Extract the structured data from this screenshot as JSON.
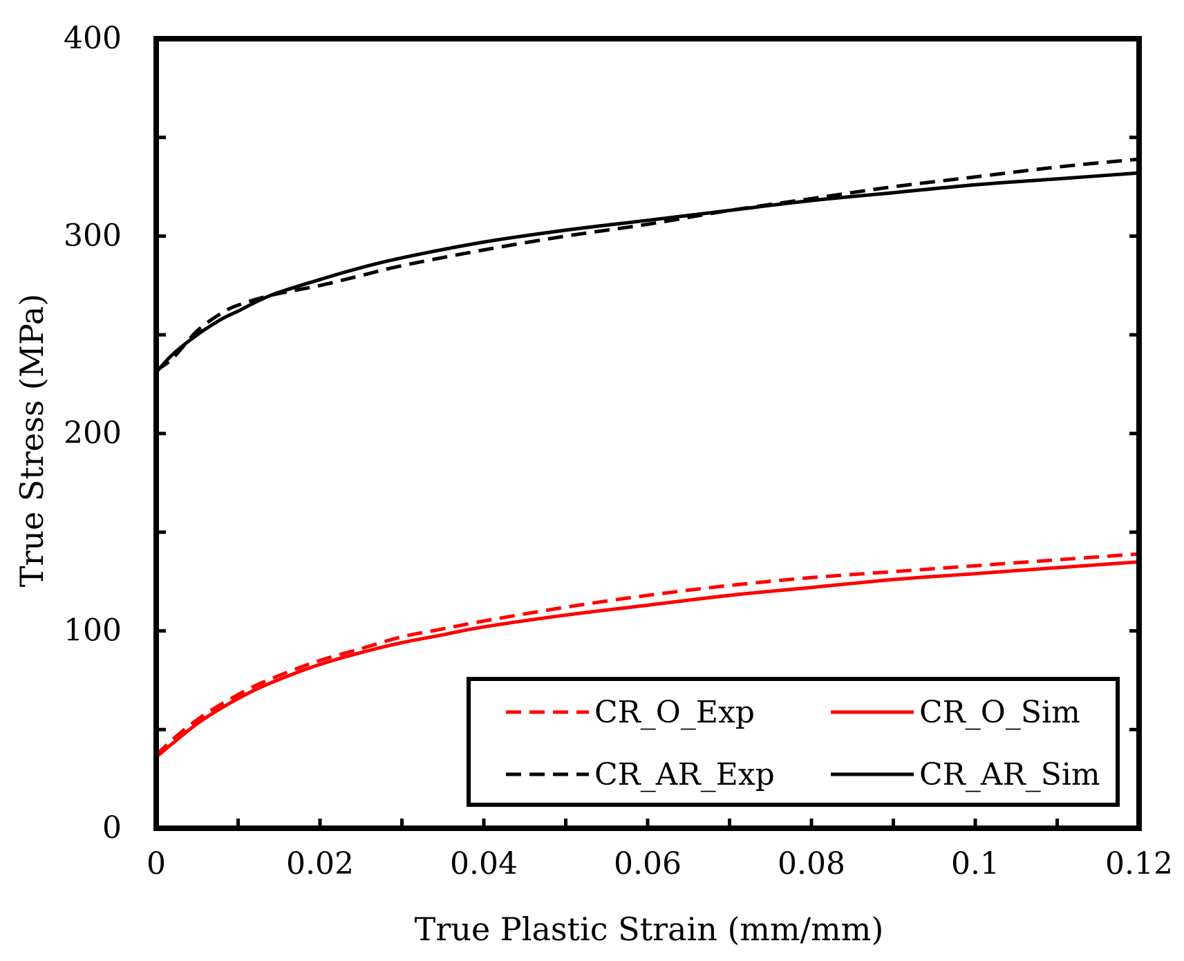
{
  "chart_data": {
    "type": "line",
    "title": "",
    "xlabel": "True Plastic Strain (mm/mm)",
    "ylabel": "True Stress (MPa)",
    "xlim": [
      0,
      0.12
    ],
    "ylim": [
      0,
      400
    ],
    "xticks": [
      0,
      0.02,
      0.04,
      0.06,
      0.08,
      0.1,
      0.12
    ],
    "xtick_labels": [
      "0",
      "0.02",
      "0.04",
      "0.06",
      "0.08",
      "0.1",
      "0.12"
    ],
    "yticks": [
      0,
      100,
      200,
      300,
      400
    ],
    "ytick_labels": [
      "0",
      "100",
      "200",
      "300",
      "400"
    ],
    "x_minor_step": 0.01,
    "y_minor_step": 50,
    "grid": false,
    "legend": {
      "placement": "bottom-right",
      "columns": 2
    },
    "colors": {
      "red": "#ff0000",
      "black": "#000000"
    },
    "series": [
      {
        "name": "CR_O_Exp",
        "color": "#ff0000",
        "dash": "dashed",
        "x": [
          0,
          0.002,
          0.005,
          0.008,
          0.012,
          0.016,
          0.02,
          0.025,
          0.03,
          0.035,
          0.04,
          0.05,
          0.06,
          0.07,
          0.08,
          0.09,
          0.1,
          0.11,
          0.12
        ],
        "y": [
          37,
          45,
          55,
          63,
          72,
          79,
          85,
          91,
          97,
          101,
          105,
          112,
          118,
          123,
          127,
          130,
          133,
          136,
          139
        ]
      },
      {
        "name": "CR_O_Sim",
        "color": "#ff0000",
        "dash": "solid",
        "x": [
          0,
          0.002,
          0.005,
          0.008,
          0.012,
          0.016,
          0.02,
          0.025,
          0.03,
          0.035,
          0.04,
          0.05,
          0.06,
          0.07,
          0.08,
          0.09,
          0.1,
          0.11,
          0.12
        ],
        "y": [
          36,
          43,
          53,
          61,
          70,
          77,
          83,
          89,
          94,
          98,
          102,
          108,
          113,
          118,
          122,
          126,
          129,
          132,
          135
        ]
      },
      {
        "name": "CR_AR_Exp",
        "color": "#000000",
        "dash": "dashed",
        "x": [
          0,
          0.002,
          0.005,
          0.008,
          0.01,
          0.014,
          0.02,
          0.025,
          0.03,
          0.04,
          0.05,
          0.06,
          0.07,
          0.08,
          0.09,
          0.1,
          0.11,
          0.12
        ],
        "y": [
          232,
          238,
          252,
          261,
          265,
          270,
          275,
          280,
          285,
          293,
          300,
          306,
          313,
          319,
          325,
          330,
          335,
          339
        ]
      },
      {
        "name": "CR_AR_Sim",
        "color": "#000000",
        "dash": "solid",
        "x": [
          0,
          0.002,
          0.005,
          0.008,
          0.01,
          0.014,
          0.02,
          0.025,
          0.03,
          0.04,
          0.05,
          0.06,
          0.07,
          0.08,
          0.09,
          0.1,
          0.11,
          0.12
        ],
        "y": [
          231,
          240,
          250,
          258,
          262,
          270,
          278,
          284,
          289,
          297,
          303,
          308,
          313,
          318,
          322,
          326,
          329,
          332
        ]
      }
    ]
  }
}
